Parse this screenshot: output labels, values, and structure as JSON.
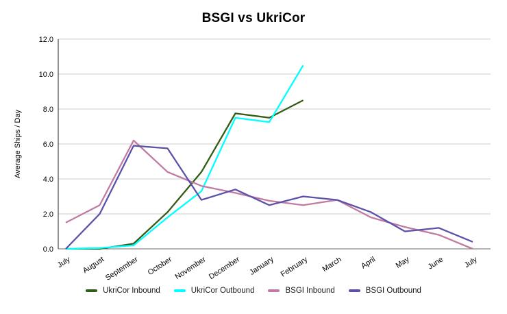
{
  "title": "BSGI vs UkriCor",
  "chart_data": {
    "type": "line",
    "title": "BSGI vs UkriCor",
    "xlabel": "",
    "ylabel": "Average Ships / Day",
    "categories": [
      "July",
      "August",
      "September",
      "October",
      "November",
      "December",
      "January",
      "February",
      "March",
      "April",
      "May",
      "June",
      "July"
    ],
    "ylim": [
      0,
      12
    ],
    "grid": true,
    "legend_position": "bottom",
    "yticks": [
      {
        "value": 0,
        "label": "0.0"
      },
      {
        "value": 2,
        "label": "2.0"
      },
      {
        "value": 4,
        "label": "4.0"
      },
      {
        "value": 6,
        "label": "6.0"
      },
      {
        "value": 8,
        "label": "8.0"
      },
      {
        "value": 10,
        "label": "10.0"
      },
      {
        "value": 12,
        "label": "12.0"
      }
    ],
    "series": [
      {
        "name": "UkriCor Inbound",
        "color": "#335c17",
        "values": [
          0,
          0,
          0.3,
          2.1,
          4.4,
          7.75,
          7.5,
          8.5,
          null,
          null,
          null,
          null,
          null
        ]
      },
      {
        "name": "UkriCor Outbound",
        "color": "#00ffff",
        "values": [
          0,
          0.05,
          0.2,
          1.8,
          3.3,
          7.5,
          7.25,
          10.5,
          null,
          null,
          null,
          null,
          null
        ]
      },
      {
        "name": "BSGI Inbound",
        "color": "#c07ba0",
        "values": [
          1.5,
          2.5,
          6.2,
          4.4,
          3.6,
          3.2,
          2.75,
          2.5,
          2.8,
          1.8,
          1.25,
          0.8,
          0
        ]
      },
      {
        "name": "BSGI Outbound",
        "color": "#5b51a9",
        "values": [
          0,
          2.0,
          5.9,
          5.75,
          2.8,
          3.4,
          2.5,
          3.0,
          2.8,
          2.1,
          1.0,
          1.2,
          0.4
        ]
      }
    ],
    "axis_color": "#6b6b6b",
    "grid_color": "#cccccc"
  }
}
